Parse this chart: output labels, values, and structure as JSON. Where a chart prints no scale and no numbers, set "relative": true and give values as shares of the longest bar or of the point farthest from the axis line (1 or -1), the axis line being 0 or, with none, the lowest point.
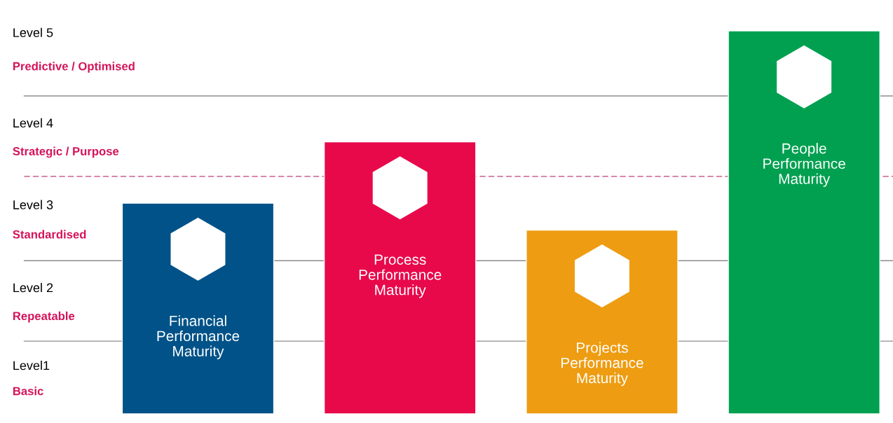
{
  "chart_data": {
    "type": "bar",
    "relative": true,
    "categories": [
      "Financial\nPerformance\nMaturity",
      "Process\nPerformance\nMaturity",
      "Projects\nPerformance\nMaturity",
      "People\nPerformance\nMaturity"
    ],
    "values": [
      0.55,
      0.71,
      0.48,
      1
    ],
    "colors": [
      "#005288",
      "#e8094b",
      "#ee9c11",
      "#00a050"
    ],
    "ref_lines": [
      {
        "axis": "y",
        "value": 0.83,
        "color": "#8c8c8c",
        "line_style": "solid"
      },
      {
        "axis": "y",
        "value": 0.62,
        "color": "#c2407a",
        "line_style": "dashed"
      },
      {
        "axis": "y",
        "value": 0.4,
        "color": "#8c8c8c",
        "line_style": "solid"
      },
      {
        "axis": "y",
        "value": 0.19,
        "color": "#8c8c8c",
        "line_style": "solid"
      }
    ],
    "annotations": [
      "Level 5",
      "Predictive / Optimised",
      "Level 4",
      "Strategic / Purpose",
      "Level 3",
      "Standardised",
      "Level 2",
      "Repeatable",
      "Level1",
      "Basic"
    ]
  }
}
